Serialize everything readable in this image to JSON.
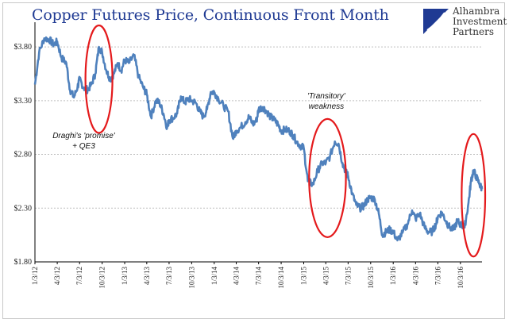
{
  "title": "Copper Futures Price, Continuous Front Month",
  "logo": {
    "lines": [
      "Alhambra",
      "Investment",
      "Partners"
    ],
    "icon": "shield-icon"
  },
  "colors": {
    "title": "#1f3a93",
    "series": "#4f81bd",
    "highlight": "#e41a1c",
    "grid": "#bfbfbf"
  },
  "chart_data": {
    "type": "line",
    "title": "Copper Futures Price, Continuous Front Month",
    "xlabel": "",
    "ylabel": "",
    "ylim": [
      1.8,
      4.0
    ],
    "y_ticks": [
      {
        "value": 1.8,
        "label": "$1.80"
      },
      {
        "value": 2.3,
        "label": "$2.30"
      },
      {
        "value": 2.8,
        "label": "$2.80"
      },
      {
        "value": 3.3,
        "label": "$3.30"
      },
      {
        "value": 3.8,
        "label": "$3.80"
      }
    ],
    "x_ticks": [
      "1/3/12",
      "4/3/12",
      "7/3/12",
      "10/3/12",
      "1/3/13",
      "4/3/13",
      "7/3/13",
      "10/3/13",
      "1/3/14",
      "4/3/14",
      "7/3/14",
      "10/3/14",
      "1/3/15",
      "4/3/15",
      "7/3/15",
      "10/3/15",
      "1/3/16",
      "4/3/16",
      "7/3/16",
      "10/3/16"
    ],
    "grid": "horizontal dashed",
    "legend": "none",
    "series": [
      {
        "points": [
          [
            "1/3/12",
            3.45
          ],
          [
            "1/20/12",
            3.75
          ],
          [
            "2/10/12",
            3.88
          ],
          [
            "3/1/12",
            3.87
          ],
          [
            "3/20/12",
            3.82
          ],
          [
            "4/3/12",
            3.85
          ],
          [
            "4/20/12",
            3.7
          ],
          [
            "5/10/12",
            3.65
          ],
          [
            "5/25/12",
            3.4
          ],
          [
            "6/10/12",
            3.33
          ],
          [
            "6/25/12",
            3.43
          ],
          [
            "7/3/12",
            3.5
          ],
          [
            "7/20/12",
            3.42
          ],
          [
            "8/5/12",
            3.4
          ],
          [
            "8/20/12",
            3.45
          ],
          [
            "9/5/12",
            3.55
          ],
          [
            "9/20/12",
            3.8
          ],
          [
            "10/3/12",
            3.75
          ],
          [
            "10/20/12",
            3.58
          ],
          [
            "11/5/12",
            3.5
          ],
          [
            "11/20/12",
            3.55
          ],
          [
            "12/5/12",
            3.65
          ],
          [
            "12/20/12",
            3.58
          ],
          [
            "1/3/13",
            3.68
          ],
          [
            "1/20/13",
            3.65
          ],
          [
            "2/10/13",
            3.72
          ],
          [
            "3/1/13",
            3.52
          ],
          [
            "3/20/13",
            3.42
          ],
          [
            "4/3/13",
            3.36
          ],
          [
            "4/20/13",
            3.15
          ],
          [
            "5/10/13",
            3.3
          ],
          [
            "5/25/13",
            3.28
          ],
          [
            "6/10/13",
            3.18
          ],
          [
            "6/25/13",
            3.05
          ],
          [
            "7/3/13",
            3.12
          ],
          [
            "7/20/13",
            3.14
          ],
          [
            "8/5/13",
            3.18
          ],
          [
            "8/20/13",
            3.34
          ],
          [
            "9/5/13",
            3.28
          ],
          [
            "9/20/13",
            3.32
          ],
          [
            "10/3/13",
            3.3
          ],
          [
            "10/20/13",
            3.28
          ],
          [
            "11/5/13",
            3.2
          ],
          [
            "11/20/13",
            3.15
          ],
          [
            "12/5/13",
            3.22
          ],
          [
            "12/20/13",
            3.38
          ],
          [
            "1/3/14",
            3.38
          ],
          [
            "1/20/14",
            3.32
          ],
          [
            "2/10/14",
            3.25
          ],
          [
            "3/1/14",
            3.2
          ],
          [
            "3/20/14",
            2.95
          ],
          [
            "4/3/14",
            3.02
          ],
          [
            "4/20/14",
            3.05
          ],
          [
            "5/10/14",
            3.1
          ],
          [
            "5/25/14",
            3.15
          ],
          [
            "6/10/14",
            3.08
          ],
          [
            "6/25/14",
            3.12
          ],
          [
            "7/3/14",
            3.22
          ],
          [
            "7/20/14",
            3.24
          ],
          [
            "8/5/14",
            3.2
          ],
          [
            "8/20/14",
            3.15
          ],
          [
            "9/5/14",
            3.12
          ],
          [
            "9/20/14",
            3.08
          ],
          [
            "10/3/14",
            3.02
          ],
          [
            "10/20/14",
            3.03
          ],
          [
            "11/5/14",
            3.02
          ],
          [
            "11/20/14",
            2.98
          ],
          [
            "12/5/14",
            2.92
          ],
          [
            "12/20/14",
            2.88
          ],
          [
            "1/3/15",
            2.86
          ],
          [
            "1/20/15",
            2.55
          ],
          [
            "2/10/15",
            2.52
          ],
          [
            "3/1/15",
            2.65
          ],
          [
            "3/20/15",
            2.72
          ],
          [
            "4/3/15",
            2.72
          ],
          [
            "4/20/15",
            2.78
          ],
          [
            "5/10/15",
            2.92
          ],
          [
            "5/25/15",
            2.9
          ],
          [
            "6/10/15",
            2.72
          ],
          [
            "6/25/15",
            2.63
          ],
          [
            "7/3/15",
            2.6
          ],
          [
            "7/20/15",
            2.43
          ],
          [
            "8/5/15",
            2.33
          ],
          [
            "8/20/15",
            2.3
          ],
          [
            "9/5/15",
            2.32
          ],
          [
            "9/20/15",
            2.38
          ],
          [
            "10/3/15",
            2.4
          ],
          [
            "10/20/15",
            2.38
          ],
          [
            "11/5/15",
            2.25
          ],
          [
            "11/20/15",
            2.05
          ],
          [
            "12/5/15",
            2.08
          ],
          [
            "12/20/15",
            2.1
          ],
          [
            "1/3/16",
            2.08
          ],
          [
            "1/20/16",
            2.0
          ],
          [
            "2/10/16",
            2.07
          ],
          [
            "3/1/16",
            2.15
          ],
          [
            "3/20/16",
            2.28
          ],
          [
            "4/3/16",
            2.2
          ],
          [
            "4/20/16",
            2.25
          ],
          [
            "5/10/16",
            2.12
          ],
          [
            "5/25/16",
            2.08
          ],
          [
            "6/10/16",
            2.08
          ],
          [
            "6/25/16",
            2.15
          ],
          [
            "7/3/16",
            2.22
          ],
          [
            "7/20/16",
            2.26
          ],
          [
            "8/5/16",
            2.18
          ],
          [
            "8/20/16",
            2.12
          ],
          [
            "9/5/16",
            2.1
          ],
          [
            "9/20/16",
            2.18
          ],
          [
            "10/3/16",
            2.15
          ],
          [
            "10/20/16",
            2.12
          ],
          [
            "11/5/16",
            2.35
          ],
          [
            "11/15/16",
            2.55
          ],
          [
            "11/25/16",
            2.65
          ],
          [
            "12/5/16",
            2.6
          ],
          [
            "12/20/16",
            2.52
          ],
          [
            "12/30/16",
            2.48
          ]
        ]
      }
    ],
    "highlights": [
      {
        "center": [
          "9/20/12",
          3.5
        ],
        "radius_days": 55,
        "radius_value": 0.5
      },
      {
        "center": [
          "4/10/15",
          2.58
        ],
        "radius_days": 75,
        "radius_value": 0.55
      },
      {
        "center": [
          "11/25/16",
          2.42
        ],
        "radius_days": 48,
        "radius_value": 0.57
      }
    ],
    "annotations": [
      {
        "lines": [
          "Draghi's 'promise'",
          "+ QE3"
        ],
        "anchor": [
          "7/20/12",
          2.95
        ]
      },
      {
        "lines": [
          "'Transitory'",
          "weakness"
        ],
        "anchor": [
          "4/5/15",
          3.32
        ]
      }
    ]
  }
}
